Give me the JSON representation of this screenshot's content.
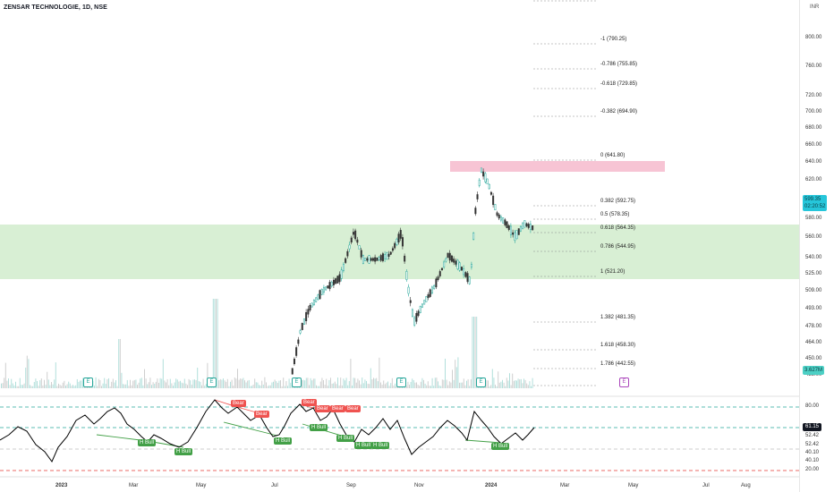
{
  "header": {
    "title": "ZENSAR TECHNOLOGIE, 1D, NSE",
    "currency": "INR"
  },
  "price_axis": [
    "800.00",
    "760.00",
    "720.00",
    "700.00",
    "680.00",
    "660.00",
    "640.00",
    "620.00",
    "580.00",
    "560.00",
    "540.00",
    "525.00",
    "509.00",
    "493.00",
    "478.00",
    "464.00",
    "450.00",
    "438.00"
  ],
  "price_label": {
    "price": "599.35",
    "countdown": "02:20:52"
  },
  "volume_label": "3.627M",
  "fib_levels": [
    {
      "label": "-1 (790.25)"
    },
    {
      "label": "-0.786 (755.85)"
    },
    {
      "label": "-0.618 (729.85)"
    },
    {
      "label": "-0.382 (694.90)"
    },
    {
      "label": "0 (641.80)"
    },
    {
      "label": "0.382 (592.75)"
    },
    {
      "label": "0.5 (578.35)"
    },
    {
      "label": "0.618 (564.35)"
    },
    {
      "label": "0.786 (544.95)"
    },
    {
      "label": "1 (521.20)"
    },
    {
      "label": "1.382 (481.35)"
    },
    {
      "label": "1.618 (458.30)"
    },
    {
      "label": "1.786 (442.55)"
    }
  ],
  "earnings_badges": [
    "E",
    "E",
    "E",
    "E",
    "E"
  ],
  "future_earnings_badge": "E",
  "rsi_axis": [
    "80.00",
    "52.42",
    "52.42",
    "40.10",
    "40.10",
    "20.00"
  ],
  "rsi_value": "61.15",
  "divergence_labels": [
    {
      "text": "Bear",
      "type": "bear"
    },
    {
      "text": "Bear",
      "type": "bear"
    },
    {
      "text": "Bear",
      "type": "bear"
    },
    {
      "text": "Bear",
      "type": "bear"
    },
    {
      "text": "Bear",
      "type": "bear"
    },
    {
      "text": "Bear",
      "type": "bear"
    },
    {
      "text": "H Bull",
      "type": "bull"
    },
    {
      "text": "H Bull",
      "type": "bull"
    },
    {
      "text": "H Bull",
      "type": "bull"
    },
    {
      "text": "H Bull",
      "type": "bull"
    },
    {
      "text": "H Bull",
      "type": "bull"
    },
    {
      "text": "H Bull",
      "type": "bull"
    },
    {
      "text": "H Bull",
      "type": "bull"
    },
    {
      "text": "H Bull",
      "type": "bull"
    }
  ],
  "time_axis": [
    "2023",
    "Mar",
    "May",
    "Jul",
    "Sep",
    "Nov",
    "2024",
    "Mar",
    "May",
    "Jul",
    "Aug"
  ],
  "colors": {
    "green_zone": "#d8efd4",
    "pink_zone": "#f7c4d4",
    "price_box": "#26c6da",
    "bear": "#ef5350",
    "bull": "#43a047",
    "rsi_line": "#000000",
    "rsi_dashed_green": "#26a69a",
    "rsi_dashed_red": "#e53935"
  }
}
